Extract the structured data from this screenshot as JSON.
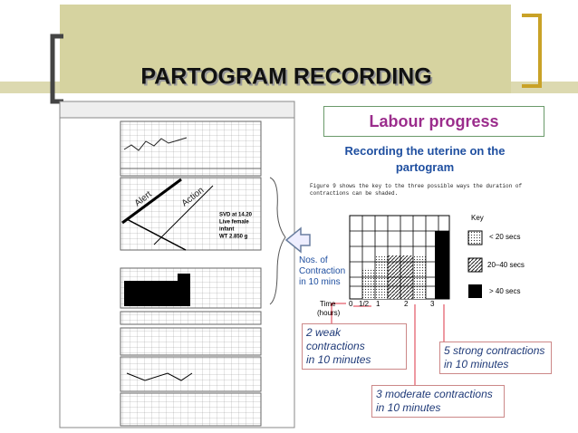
{
  "header": {
    "title": "PARTOGRAM RECORDING"
  },
  "partogram": {
    "alert_label": "Alert",
    "action_label": "Action",
    "delivery_note": [
      "SVD at 14.20",
      "Live female",
      "infant",
      "WT 2.850 g"
    ]
  },
  "panel": {
    "heading": "Labour progress",
    "subheading": [
      "Recording the uterine on the",
      "partogram"
    ],
    "figure_caption": [
      "Figure 9 shows the key to the three possible ways the duration of",
      "contractions can be shaded."
    ],
    "key": {
      "title": "Key",
      "items": [
        "< 20 secs",
        "20–40 secs",
        "> 40 secs"
      ]
    },
    "time_axis": {
      "label": "Time",
      "unit": "(hours)",
      "ticks": [
        "0",
        "1/2",
        "1",
        "2",
        "3"
      ]
    }
  },
  "callout": [
    "Nos. of",
    "Contraction",
    "in 10 mins"
  ],
  "annotations": [
    [
      "2 weak contractions",
      "in 10 minutes"
    ],
    [
      "5 strong contractions",
      "in 10 minutes"
    ],
    [
      "3 moderate contractions",
      "in 10 minutes"
    ]
  ]
}
